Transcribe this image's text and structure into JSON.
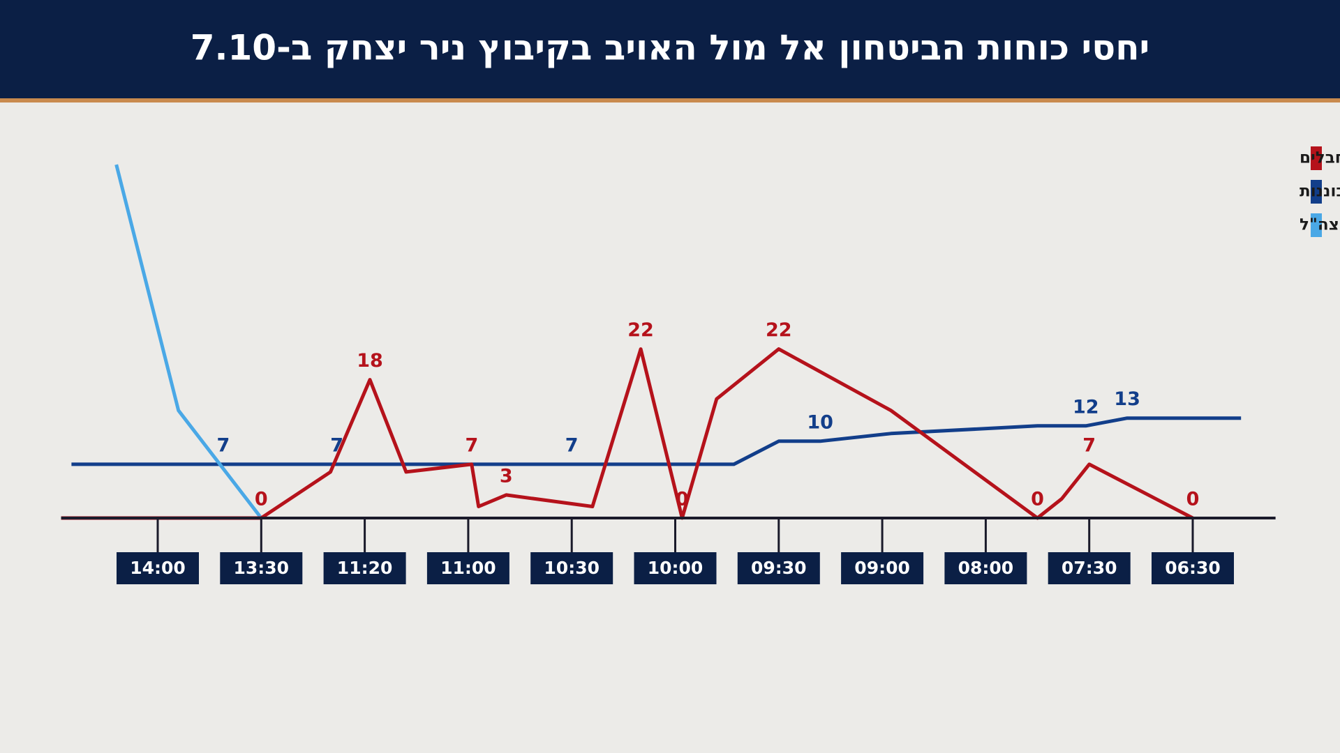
{
  "chart_data": {
    "type": "line",
    "title": "יחסי כוחות הביטחון אל מול האויב בקיבוץ ניר יצחק ב-7.10",
    "x_reversed": true,
    "xlim": [
      342,
      868
    ],
    "xticks": [
      {
        "value": 390,
        "label": "06:30"
      },
      {
        "value": 450,
        "label": "07:30"
      },
      {
        "value": 480,
        "label": "08:00"
      },
      {
        "value": 540,
        "label": "09:00"
      },
      {
        "value": 570,
        "label": "09:30"
      },
      {
        "value": 600,
        "label": "10:00"
      },
      {
        "value": 630,
        "label": "10:30"
      },
      {
        "value": 660,
        "label": "11:00"
      },
      {
        "value": 680,
        "label": "11:20"
      },
      {
        "value": 810,
        "label": "13:30"
      },
      {
        "value": 840,
        "label": "14:00"
      }
    ],
    "ylim": [
      0,
      50
    ],
    "legend": "top-right",
    "series": [
      {
        "name": "מחבלים",
        "color": "#b5121b",
        "x": [
          868,
          810,
          723,
          679,
          672,
          659,
          657,
          649,
          624,
          610,
          598,
          588,
          570,
          535,
          465,
          458,
          450,
          390
        ],
        "values": [
          0,
          0,
          6,
          18,
          6,
          7,
          1.5,
          3,
          1.5,
          22,
          0,
          15.5,
          22,
          14,
          0,
          2.5,
          7,
          0
        ],
        "value_labels": [
          null,
          "0",
          null,
          "18",
          null,
          "7",
          null,
          "3",
          null,
          "22",
          "0",
          null,
          "22",
          null,
          "0",
          null,
          "7",
          "0"
        ]
      },
      {
        "name": "כיתת כוננות",
        "color": "#123e8a",
        "x": [
          865,
          821,
          715,
          630,
          583,
          570,
          558,
          535,
          465,
          451,
          428,
          362
        ],
        "values": [
          7,
          7,
          7,
          7,
          7,
          10,
          10,
          11,
          12,
          12,
          13,
          13
        ],
        "value_labels": [
          null,
          "7",
          "7",
          "7",
          null,
          null,
          "10",
          null,
          null,
          "12",
          "13",
          null
        ]
      },
      {
        "name": "כוחות צה\"ל",
        "color": "#4aa8e6",
        "x": [
          852,
          834,
          810
        ],
        "values": [
          46,
          14,
          0
        ]
      }
    ]
  }
}
